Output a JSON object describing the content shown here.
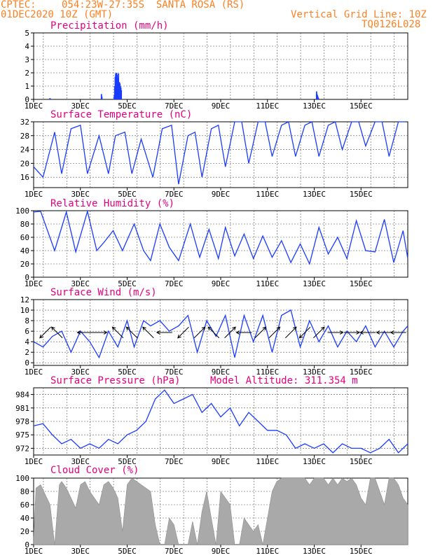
{
  "header": {
    "source": "CPTEC:",
    "location": "054:23W-27:35S  SANTA ROSA (RS)",
    "run_date": "01DEC2020 10Z (GMT)",
    "grid_note": "Vertical Grid Line: 10Z",
    "code": "TQ0126L028"
  },
  "colors": {
    "header": "#ff7f1f",
    "titles": "#e5007f",
    "series": "#1a3bff",
    "cloud": "#a9a9a9",
    "arrows": "#000000"
  },
  "x_tick_labels": [
    "1DEC",
    "3DEC",
    "5DEC",
    "7DEC",
    "9DEC",
    "11DEC",
    "13DEC",
    "15DEC"
  ],
  "chart_data": [
    {
      "id": "precip",
      "type": "bar",
      "title": "Precipitation (mm/h)",
      "x_unit": "days since 01DEC2020 00Z",
      "ylim": [
        0,
        5
      ],
      "yticks": [
        0,
        1,
        2,
        3,
        4,
        5
      ],
      "grid": true,
      "x": [
        0.7,
        2.9,
        2.92,
        3.45,
        3.47,
        3.49,
        3.51,
        3.53,
        3.55,
        3.57,
        3.59,
        3.61,
        3.63,
        3.65,
        3.67,
        3.69,
        3.71,
        3.73,
        3.75,
        12.1,
        12.12,
        12.14,
        12.16,
        12.18
      ],
      "values": [
        0.1,
        0.4,
        0.2,
        0.3,
        1.0,
        1.7,
        1.95,
        1.6,
        2.0,
        1.85,
        1.4,
        1.6,
        1.95,
        1.1,
        1.3,
        1.2,
        1.0,
        0.9,
        0.7,
        0.6,
        0.4,
        0.3,
        0.2,
        0.1
      ]
    },
    {
      "id": "temp",
      "type": "line",
      "title": "Surface Temperature (nC)",
      "x_unit": "days since 01DEC2020 00Z",
      "ylim": [
        13,
        32
      ],
      "yticks": [
        16,
        20,
        24,
        28,
        32
      ],
      "grid": true,
      "x": [
        0.0,
        0.4,
        0.9,
        1.2,
        1.6,
        2.0,
        2.3,
        2.8,
        3.2,
        3.5,
        3.9,
        4.2,
        4.6,
        5.1,
        5.5,
        5.9,
        6.2,
        6.6,
        6.9,
        7.2,
        7.6,
        7.9,
        8.2,
        8.6,
        8.9,
        9.2,
        9.6,
        9.9,
        10.2,
        10.6,
        10.9,
        11.2,
        11.6,
        11.9,
        12.2,
        12.6,
        12.9,
        13.2,
        13.6,
        13.9,
        14.2,
        14.6,
        14.9,
        15.2,
        15.6,
        15.9
      ],
      "values": [
        19,
        16,
        29,
        17,
        30,
        31,
        17,
        28,
        17,
        28,
        29,
        17,
        27,
        16,
        30,
        31,
        14,
        28,
        29,
        16,
        30,
        31,
        19,
        32,
        32,
        20,
        32,
        32,
        22,
        31,
        32,
        22,
        31,
        32,
        22,
        31,
        32,
        24,
        32,
        32,
        25,
        32,
        32,
        22,
        32,
        32
      ]
    },
    {
      "id": "rh",
      "type": "line",
      "title": "Relative Humidity (%)",
      "x_unit": "days since 01DEC2020 00Z",
      "ylim": [
        0,
        100
      ],
      "yticks": [
        0,
        20,
        40,
        60,
        80,
        100
      ],
      "grid": true,
      "x": [
        0.0,
        0.3,
        0.9,
        1.4,
        1.8,
        2.3,
        2.7,
        3.0,
        3.4,
        3.8,
        4.3,
        4.7,
        5.0,
        5.4,
        5.8,
        6.2,
        6.7,
        7.1,
        7.5,
        7.9,
        8.2,
        8.6,
        9.0,
        9.4,
        9.8,
        10.2,
        10.6,
        11.0,
        11.4,
        11.8,
        12.2,
        12.6,
        13.0,
        13.4,
        13.8,
        14.2,
        14.6,
        15.0,
        15.4,
        15.8,
        16.0
      ],
      "values": [
        98,
        99,
        40,
        98,
        38,
        99,
        40,
        52,
        70,
        40,
        80,
        40,
        25,
        80,
        45,
        25,
        80,
        30,
        72,
        28,
        75,
        32,
        65,
        28,
        62,
        30,
        55,
        22,
        50,
        20,
        75,
        35,
        60,
        28,
        85,
        40,
        38,
        87,
        22,
        70,
        28
      ]
    },
    {
      "id": "wind",
      "type": "line",
      "title": "Surface Wind (m/s)",
      "x_unit": "days since 01DEC2020 00Z",
      "ylim": [
        -0.5,
        12
      ],
      "yticks": [
        0,
        2,
        4,
        6,
        8,
        10,
        12
      ],
      "grid": true,
      "x": [
        0.0,
        0.4,
        0.8,
        1.2,
        1.6,
        2.0,
        2.4,
        2.8,
        3.2,
        3.6,
        4.0,
        4.3,
        4.7,
        5.0,
        5.4,
        5.8,
        6.2,
        6.6,
        7.0,
        7.4,
        7.8,
        8.2,
        8.6,
        9.0,
        9.4,
        9.8,
        10.2,
        10.6,
        11.0,
        11.4,
        11.8,
        12.2,
        12.6,
        13.0,
        13.4,
        13.8,
        14.2,
        14.6,
        15.0,
        15.4,
        15.8,
        16.0
      ],
      "values": [
        4,
        3,
        5,
        6,
        2,
        6,
        4,
        1,
        6,
        3,
        8,
        3,
        8,
        7,
        8,
        6,
        7,
        9,
        2,
        8,
        5,
        9,
        1,
        9,
        4,
        9,
        2,
        9,
        10,
        3,
        8,
        4,
        7,
        3,
        6,
        4,
        7,
        3,
        6,
        3,
        6,
        7
      ],
      "arrows": [
        {
          "x": 0.5,
          "u": -1,
          "v": -1
        },
        {
          "x": 1.0,
          "u": -1,
          "v": 1
        },
        {
          "x": 2.2,
          "u": -1,
          "v": 0
        },
        {
          "x": 2.8,
          "u": 1,
          "v": 0
        },
        {
          "x": 3.6,
          "u": -1,
          "v": 1
        },
        {
          "x": 4.2,
          "u": -1,
          "v": 1
        },
        {
          "x": 4.9,
          "u": -1,
          "v": 1
        },
        {
          "x": 5.6,
          "u": -1,
          "v": 0
        },
        {
          "x": 6.4,
          "u": -1,
          "v": -1
        },
        {
          "x": 7.1,
          "u": 1,
          "v": 1
        },
        {
          "x": 7.7,
          "u": -1,
          "v": 1
        },
        {
          "x": 8.4,
          "u": 1,
          "v": 1
        },
        {
          "x": 9.0,
          "u": -1,
          "v": 0
        },
        {
          "x": 9.7,
          "u": 1,
          "v": 1
        },
        {
          "x": 10.3,
          "u": 1,
          "v": 1
        },
        {
          "x": 11.0,
          "u": 1,
          "v": 1
        },
        {
          "x": 11.6,
          "u": -1,
          "v": -1
        },
        {
          "x": 12.2,
          "u": 1,
          "v": 1
        },
        {
          "x": 12.9,
          "u": 1,
          "v": 0
        },
        {
          "x": 13.6,
          "u": 1,
          "v": 0
        },
        {
          "x": 14.3,
          "u": -1,
          "v": 0
        },
        {
          "x": 15.0,
          "u": -1,
          "v": 0
        },
        {
          "x": 15.6,
          "u": -1,
          "v": 0
        }
      ]
    },
    {
      "id": "press",
      "type": "line",
      "title": "Surface Pressure (hPa)",
      "x_unit": "days since 01DEC2020 00Z",
      "subtitle": "Model Altitude: 311.354 m",
      "ylim": [
        970.5,
        985.5
      ],
      "yticks": [
        972,
        975,
        978,
        981,
        984
      ],
      "grid": true,
      "x": [
        0.0,
        0.4,
        0.8,
        1.2,
        1.6,
        2.0,
        2.4,
        2.8,
        3.2,
        3.6,
        4.0,
        4.4,
        4.8,
        5.2,
        5.6,
        6.0,
        6.4,
        6.8,
        7.2,
        7.6,
        8.0,
        8.4,
        8.8,
        9.2,
        9.6,
        10.0,
        10.4,
        10.8,
        11.2,
        11.6,
        12.0,
        12.4,
        12.8,
        13.2,
        13.6,
        14.0,
        14.4,
        14.8,
        15.2,
        15.6,
        16.0
      ],
      "values": [
        977,
        977.5,
        975,
        973,
        974,
        972,
        973,
        972,
        974,
        973,
        975,
        976,
        978,
        983,
        985,
        982,
        983,
        984,
        980,
        982,
        979,
        981,
        977,
        980,
        978,
        976,
        976,
        975,
        972,
        973,
        972,
        973,
        971,
        973,
        972,
        972,
        971,
        972,
        974,
        971,
        973
      ]
    },
    {
      "id": "cloud",
      "type": "area",
      "title": "Cloud Cover (%)",
      "x_unit": "days since 01DEC2020 00Z",
      "ylim": [
        0,
        100
      ],
      "yticks": [
        0,
        20,
        40,
        60,
        80,
        100
      ],
      "grid": true,
      "x": [
        0.0,
        0.1,
        0.3,
        0.5,
        0.7,
        0.9,
        1.1,
        1.2,
        1.4,
        1.6,
        1.8,
        2.0,
        2.2,
        2.4,
        2.6,
        2.8,
        3.0,
        3.2,
        3.4,
        3.6,
        3.8,
        4.0,
        4.2,
        4.4,
        4.6,
        4.8,
        5.0,
        5.2,
        5.4,
        5.6,
        5.8,
        6.0,
        6.2,
        6.4,
        6.6,
        6.8,
        7.0,
        7.2,
        7.4,
        7.6,
        7.8,
        8.0,
        8.2,
        8.4,
        8.6,
        8.8,
        9.0,
        9.2,
        9.4,
        9.6,
        9.8,
        10.0,
        10.2,
        10.4,
        10.6,
        10.8,
        11.0,
        11.2,
        11.4,
        11.6,
        11.8,
        12.0,
        12.2,
        12.4,
        12.6,
        12.8,
        13.0,
        13.2,
        13.4,
        13.6,
        13.8,
        14.0,
        14.2,
        14.4,
        14.6,
        14.8,
        15.0,
        15.2,
        15.4,
        15.6,
        15.8,
        16.0
      ],
      "values": [
        10,
        85,
        90,
        75,
        60,
        0,
        90,
        95,
        85,
        70,
        55,
        90,
        95,
        80,
        70,
        60,
        90,
        95,
        85,
        70,
        20,
        90,
        100,
        95,
        90,
        85,
        80,
        30,
        0,
        0,
        40,
        30,
        0,
        0,
        0,
        35,
        0,
        50,
        80,
        40,
        0,
        80,
        70,
        60,
        0,
        0,
        40,
        30,
        20,
        30,
        0,
        40,
        80,
        95,
        100,
        100,
        100,
        100,
        100,
        100,
        90,
        100,
        100,
        100,
        90,
        100,
        90,
        100,
        95,
        100,
        90,
        70,
        60,
        100,
        100,
        80,
        60,
        100,
        100,
        90,
        70,
        60
      ]
    }
  ]
}
